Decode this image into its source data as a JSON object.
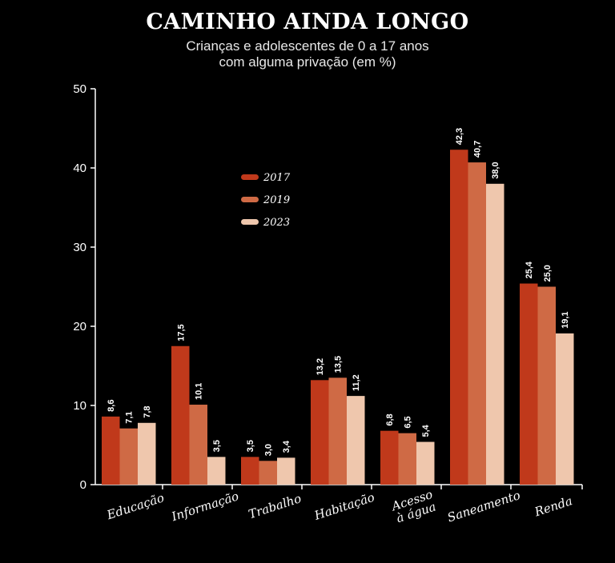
{
  "chart_data": {
    "type": "bar",
    "title": "CAMINHO AINDA LONGO",
    "subtitle_lines": [
      "Crianças e adolescentes de 0 a 17 anos",
      "com alguma privação (em %)"
    ],
    "categories": [
      [
        "Educação"
      ],
      [
        "Informação"
      ],
      [
        "Trabalho"
      ],
      [
        "Habitação"
      ],
      [
        "Acesso",
        "à água"
      ],
      [
        "Saneamento"
      ],
      [
        "Renda"
      ]
    ],
    "series": [
      {
        "name": "2017",
        "color": "#c0391b",
        "values": [
          8.6,
          17.5,
          3.5,
          13.2,
          6.8,
          42.3,
          25.4
        ],
        "labels": [
          "8,6",
          "17,5",
          "3,5",
          "13,2",
          "6,8",
          "42,3",
          "25,4"
        ]
      },
      {
        "name": "2019",
        "color": "#cf6a45",
        "values": [
          7.1,
          10.1,
          3.0,
          13.5,
          6.5,
          40.7,
          25.0
        ],
        "labels": [
          "7,1",
          "10,1",
          "3,0",
          "13,5",
          "6,5",
          "40,7",
          "25,0"
        ]
      },
      {
        "name": "2023",
        "color": "#efc7ad",
        "values": [
          7.8,
          3.5,
          3.4,
          11.2,
          5.4,
          38.0,
          19.1
        ],
        "labels": [
          "7,8",
          "3,5",
          "3,4",
          "11,2",
          "5,4",
          "38,0",
          "19,1"
        ]
      }
    ],
    "ylim": [
      0,
      50
    ],
    "yticks": [
      0,
      10,
      20,
      30,
      40,
      50
    ],
    "legend_placement": "top-left inside plot",
    "grid": false
  }
}
